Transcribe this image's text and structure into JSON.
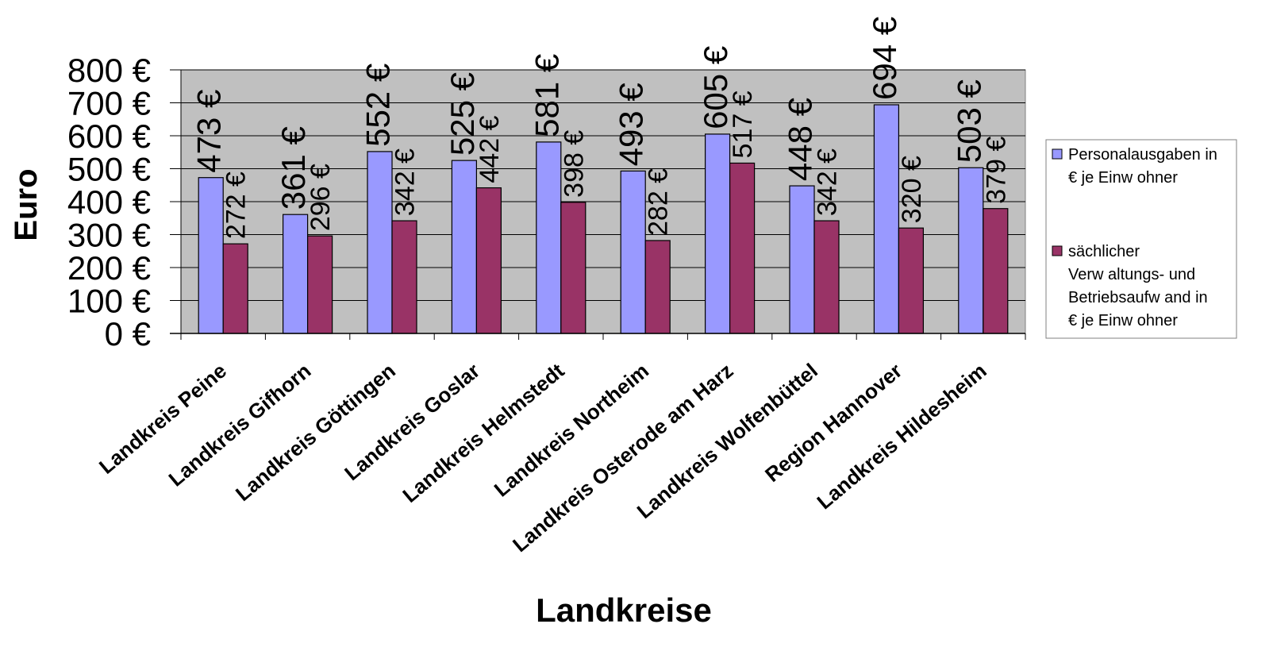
{
  "chart_data": {
    "type": "bar",
    "title": "",
    "xlabel": "Landkreise",
    "ylabel": "Euro",
    "ylim": [
      0,
      800
    ],
    "ytick_step": 100,
    "ytick_suffix": " €",
    "value_suffix": " €",
    "grid": true,
    "legend_position": "right",
    "categories": [
      "Landkreis Peine",
      "Landkreis Gifhorn",
      "Landkreis Göttingen",
      "Landkreis Goslar",
      "Landkreis Helmstedt",
      "Landkreis Northeim",
      "Landkreis Osterode am Harz",
      "Landkreis Wolfenbüttel",
      "Region Hannover",
      "Landkreis Hildesheim"
    ],
    "series": [
      {
        "name": "Personalausgaben in € je Einw ohner",
        "legend_lines": [
          "Personalausgaben in",
          "€ je Einw ohner"
        ],
        "color": "#9999ff",
        "values": [
          473,
          361,
          552,
          525,
          581,
          493,
          605,
          448,
          694,
          503
        ]
      },
      {
        "name": "sächlicher Verw altungs- und Betriebsaufw and in € je Einw ohner",
        "legend_lines": [
          "sächlicher",
          "Verw altungs- und",
          "Betriebsaufw and in",
          "€ je Einw ohner"
        ],
        "color": "#993366",
        "values": [
          272,
          296,
          342,
          442,
          398,
          282,
          517,
          342,
          320,
          379
        ]
      }
    ],
    "colors": {
      "plot_background": "#c0c0c0",
      "gridline": "#000000",
      "bar_outline": "#000000"
    }
  }
}
